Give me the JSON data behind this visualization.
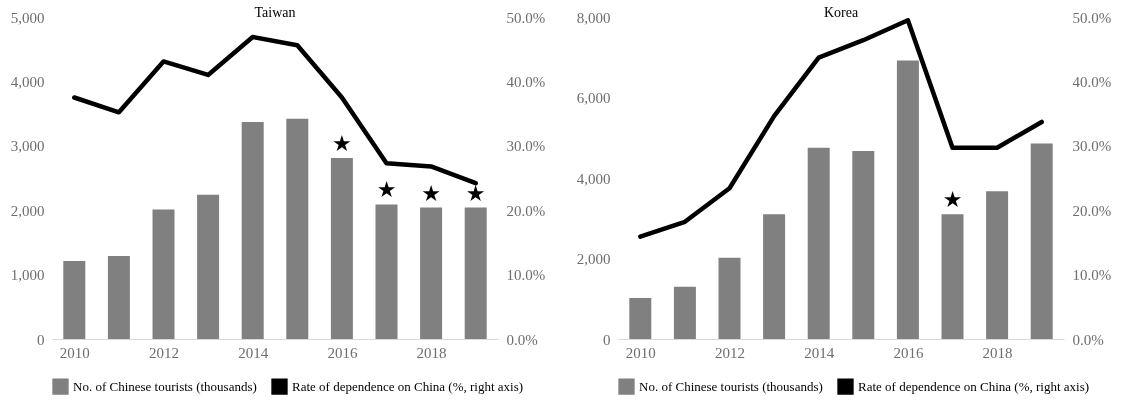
{
  "chart_data": [
    {
      "type": "bar",
      "title": "Taiwan",
      "x": [
        2010,
        2011,
        2012,
        2013,
        2014,
        2015,
        2016,
        2017,
        2018,
        2019
      ],
      "xlim": [
        2009.5,
        2019.5
      ],
      "xticks": [
        2010,
        2012,
        2014,
        2016,
        2018
      ],
      "series": [
        {
          "name": "No. of Chinese tourists (thousands)",
          "color": "#808080",
          "values": [
            1210,
            1290,
            2010,
            2240,
            3370,
            3420,
            2810,
            2090,
            2040,
            2040
          ]
        },
        {
          "name": "Rate of dependence on China (%, right axis)",
          "type": "line",
          "axis": "y2",
          "color": "#000000",
          "values": [
            37.5,
            35.2,
            43.1,
            41.0,
            46.9,
            45.6,
            37.5,
            27.3,
            26.8,
            24.2
          ]
        }
      ],
      "ylim": [
        0,
        5000
      ],
      "yticks": [
        0,
        {
          "value": 1000,
          "label": "1,000"
        },
        {
          "value": 2000,
          "label": "2,000"
        },
        {
          "value": 3000,
          "label": "3,000"
        },
        {
          "value": 4000,
          "label": "4,000"
        },
        {
          "value": 5000,
          "label": "5,000"
        }
      ],
      "y2lim": [
        0,
        50
      ],
      "y2ticks": [
        {
          "value": 0,
          "label": "0.0%"
        },
        {
          "value": 10,
          "label": "10.0%"
        },
        {
          "value": 20,
          "label": "20.0%"
        },
        {
          "value": 30,
          "label": "30.0%"
        },
        {
          "value": 40,
          "label": "40.0%"
        },
        {
          "value": 50,
          "label": "50.0%"
        }
      ],
      "legend": "bottom",
      "annotations": [
        {
          "text": "★",
          "x": 2016,
          "y": 2810
        },
        {
          "text": "★",
          "x": 2017,
          "y": 2090
        },
        {
          "text": "★",
          "x": 2018,
          "y": 2040
        },
        {
          "text": "★",
          "x": 2019,
          "y": 2040
        }
      ]
    },
    {
      "type": "bar",
      "title": "Korea",
      "x": [
        2010,
        2011,
        2012,
        2013,
        2014,
        2015,
        2016,
        2017,
        2018,
        2019
      ],
      "xlim": [
        2009.5,
        2019.5
      ],
      "xticks": [
        2010,
        2012,
        2014,
        2016,
        2018
      ],
      "series": [
        {
          "name": "No. of Chinese tourists (thousands)",
          "color": "#808080",
          "values": [
            1020,
            1300,
            2020,
            3100,
            4750,
            4670,
            6920,
            3100,
            3670,
            4860
          ]
        },
        {
          "name": "Rate of dependence on China (%, right axis)",
          "type": "line",
          "axis": "y2",
          "color": "#000000",
          "values": [
            15.9,
            18.2,
            23.4,
            34.6,
            43.7,
            46.4,
            49.5,
            29.7,
            29.7,
            33.7
          ]
        }
      ],
      "ylim": [
        0,
        8000
      ],
      "yticks": [
        0,
        {
          "value": 2000,
          "label": "2,000"
        },
        {
          "value": 4000,
          "label": "4,000"
        },
        {
          "value": 6000,
          "label": "6,000"
        },
        {
          "value": 8000,
          "label": "8,000"
        }
      ],
      "y2lim": [
        0,
        50
      ],
      "y2ticks": [
        {
          "value": 0,
          "label": "0.0%"
        },
        {
          "value": 10,
          "label": "10.0%"
        },
        {
          "value": 20,
          "label": "20.0%"
        },
        {
          "value": 30,
          "label": "30.0%"
        },
        {
          "value": 40,
          "label": "40.0%"
        },
        {
          "value": 50,
          "label": "50.0%"
        }
      ],
      "legend": "bottom",
      "annotations": [
        {
          "text": "★",
          "x": 2017,
          "y": 3100
        }
      ]
    }
  ]
}
